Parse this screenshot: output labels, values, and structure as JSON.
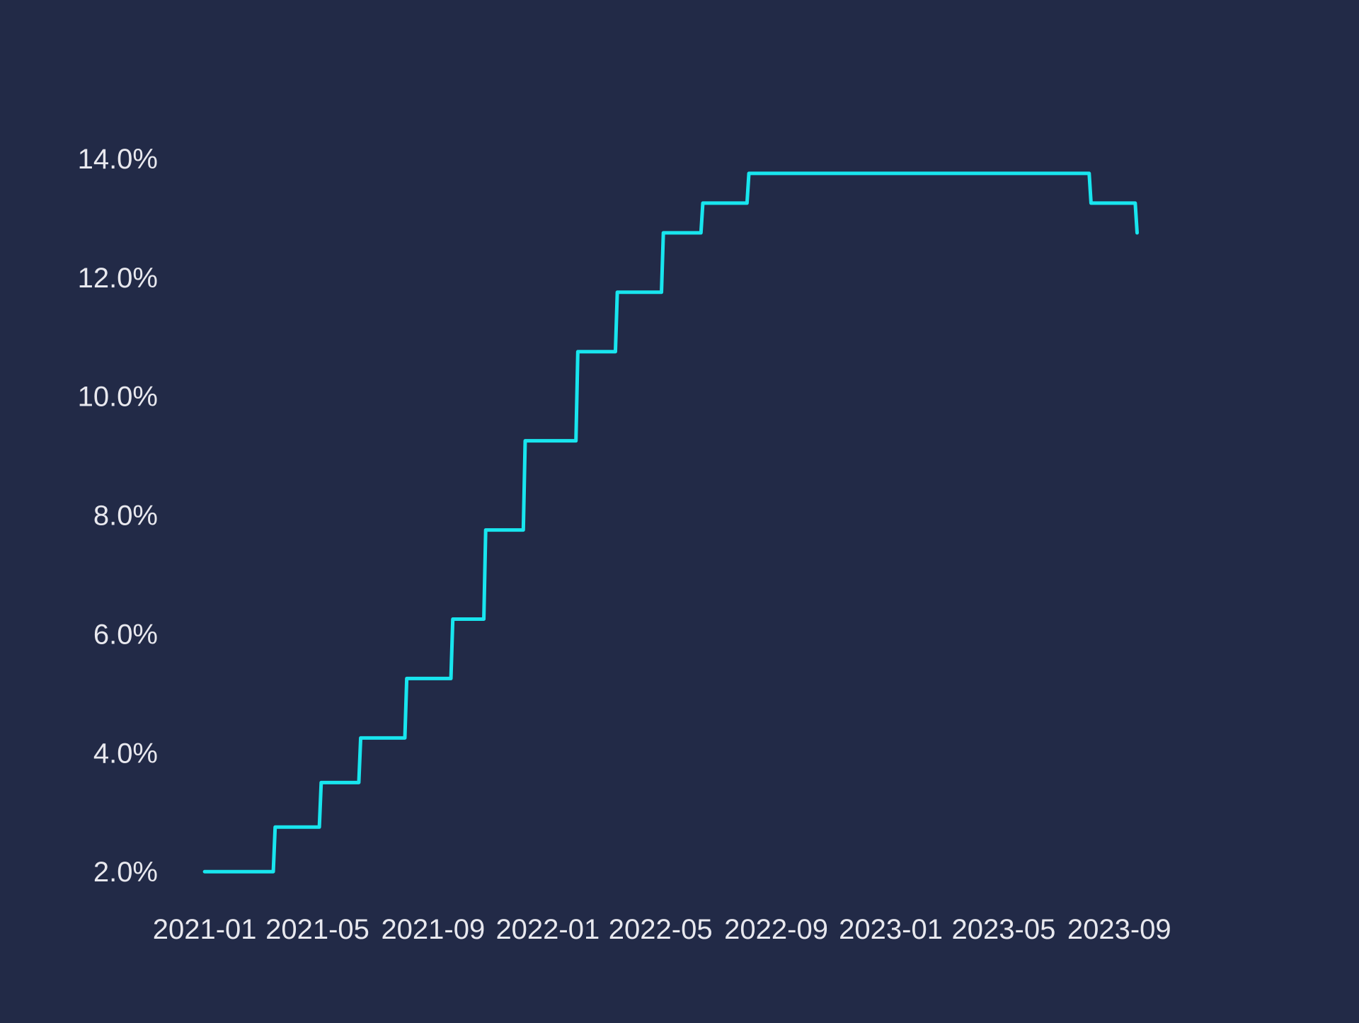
{
  "colors": {
    "background": "#222a47",
    "line": "#18e5ee",
    "text": "#e8e8ee"
  },
  "chart_data": {
    "type": "line",
    "interpolation": "step-after",
    "title": "",
    "xlabel": "",
    "ylabel": "",
    "x_ticks": [
      "2021-01",
      "2021-05",
      "2021-09",
      "2022-01",
      "2022-05",
      "2022-09",
      "2023-01",
      "2023-05",
      "2023-09"
    ],
    "y_ticks": [
      "2.0%",
      "4.0%",
      "6.0%",
      "8.0%",
      "10.0%",
      "12.0%",
      "14.0%"
    ],
    "y_unit": "%",
    "ylim": [
      1.3,
      15.0
    ],
    "xlim": [
      "2020-11-25",
      "2023-12-22"
    ],
    "grid": false,
    "legend": "none",
    "series": [
      {
        "color": "#18e5ee",
        "points": [
          {
            "x": "2021-01-01",
            "y": 2.0
          },
          {
            "x": "2021-03-17",
            "y": 2.75
          },
          {
            "x": "2021-05-05",
            "y": 3.5
          },
          {
            "x": "2021-06-16",
            "y": 4.25
          },
          {
            "x": "2021-08-04",
            "y": 5.25
          },
          {
            "x": "2021-09-22",
            "y": 6.25
          },
          {
            "x": "2021-10-27",
            "y": 7.75
          },
          {
            "x": "2021-12-08",
            "y": 9.25
          },
          {
            "x": "2022-02-02",
            "y": 10.75
          },
          {
            "x": "2022-03-16",
            "y": 11.75
          },
          {
            "x": "2022-05-04",
            "y": 12.75
          },
          {
            "x": "2022-06-15",
            "y": 13.25
          },
          {
            "x": "2022-08-03",
            "y": 13.75
          },
          {
            "x": "2023-08-02",
            "y": 13.25
          },
          {
            "x": "2023-09-20",
            "y": 12.75
          }
        ]
      }
    ]
  }
}
